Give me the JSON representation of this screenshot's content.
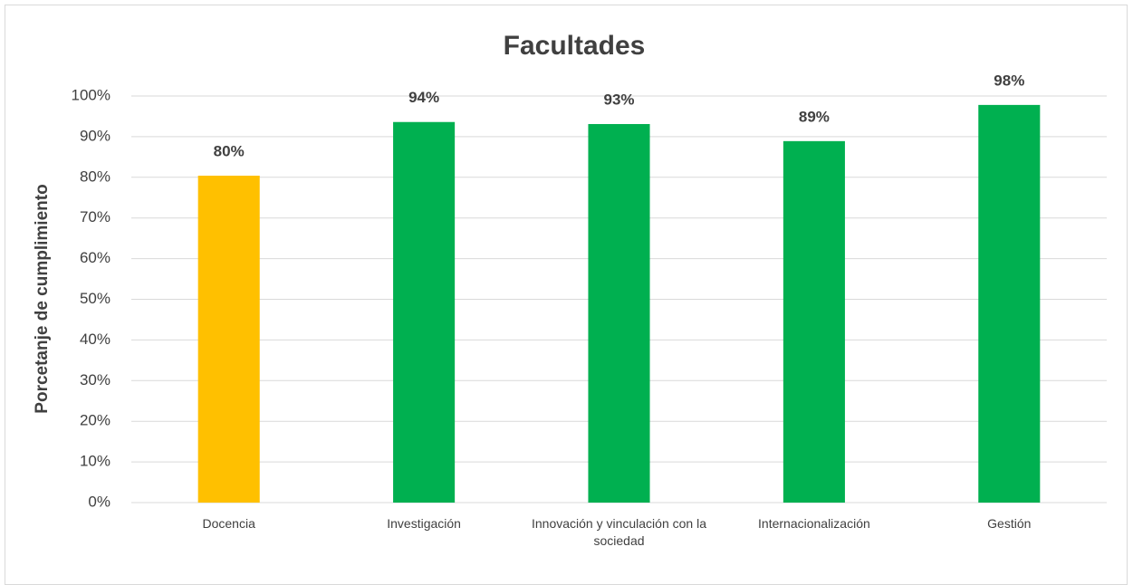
{
  "chart_data": {
    "type": "bar",
    "title": "Facultades",
    "y_label": "Porcetanje de cumplimiento",
    "categories": [
      "Docencia",
      "Investigación",
      "Innovación y vinculación con la sociedad",
      "Internacionalización",
      "Gestión"
    ],
    "values": [
      80.4,
      93.6,
      93.1,
      88.9,
      97.8
    ],
    "value_labels": [
      "80%",
      "94%",
      "93%",
      "89%",
      "98%"
    ],
    "colors": [
      "#ffc000",
      "#00b050",
      "#00b050",
      "#00b050",
      "#00b050"
    ],
    "ylim": [
      0,
      100
    ],
    "yticks": [
      {
        "value": 0,
        "label": "0%"
      },
      {
        "value": 10,
        "label": "10%"
      },
      {
        "value": 20,
        "label": "20%"
      },
      {
        "value": 30,
        "label": "30%"
      },
      {
        "value": 40,
        "label": "40%"
      },
      {
        "value": 50,
        "label": "50%"
      },
      {
        "value": 60,
        "label": "60%"
      },
      {
        "value": 70,
        "label": "70%"
      },
      {
        "value": 80,
        "label": "80%"
      },
      {
        "value": 90,
        "label": "90%"
      },
      {
        "value": 100,
        "label": "100%"
      }
    ],
    "grid": true
  }
}
